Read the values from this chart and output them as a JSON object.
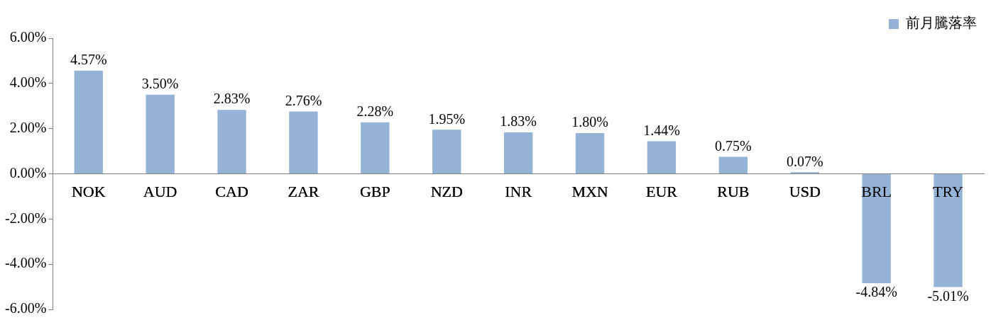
{
  "chart_data": {
    "type": "bar",
    "categories": [
      "NOK",
      "AUD",
      "CAD",
      "ZAR",
      "GBP",
      "NZD",
      "INR",
      "MXN",
      "EUR",
      "RUB",
      "USD",
      "BRL",
      "TRY"
    ],
    "series": [
      {
        "name": "前月騰落率",
        "color": "#95b3d7",
        "values": [
          4.57,
          3.5,
          2.83,
          2.76,
          2.28,
          1.95,
          1.83,
          1.8,
          1.44,
          0.75,
          0.07,
          -4.84,
          -5.01
        ],
        "value_labels": [
          "4.57%",
          "3.50%",
          "2.83%",
          "2.76%",
          "2.28%",
          "1.95%",
          "1.83%",
          "1.80%",
          "1.44%",
          "0.75%",
          "0.07%",
          "-4.84%",
          "-5.01%"
        ]
      }
    ],
    "ylim": [
      -6,
      6
    ],
    "yticks": [
      {
        "value": -6,
        "label": "-6.00%"
      },
      {
        "value": -4,
        "label": "-4.00%"
      },
      {
        "value": -2,
        "label": "-2.00%"
      },
      {
        "value": 0,
        "label": "0.00%"
      },
      {
        "value": 2,
        "label": "2.00%"
      },
      {
        "value": 4,
        "label": "4.00%"
      },
      {
        "value": 6,
        "label": "6.00%"
      }
    ],
    "grid": false,
    "legend": "top right"
  }
}
